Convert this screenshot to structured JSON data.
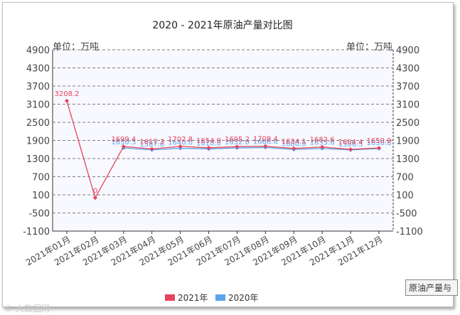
{
  "chart_data": {
    "type": "line",
    "title": "2020 - 2021年原油产量对比图",
    "ylabel_left": "单位：万吨",
    "ylabel_right": "单位：万吨",
    "yticks": [
      4900,
      4300,
      3700,
      3100,
      2500,
      1900,
      1300,
      700,
      100,
      -500,
      -1100
    ],
    "ylim": [
      -1100,
      4900
    ],
    "categories": [
      "2021年01月",
      "2021年02月",
      "2021年03月",
      "2021年04月",
      "2021年05月",
      "2021年06月",
      "2021年07月",
      "2021年08月",
      "2021年09月",
      "2021年10月",
      "2021年11月",
      "2021年12月"
    ],
    "series": [
      {
        "name": "2021年",
        "color": "#e8435a",
        "values": [
          3208.2,
          0,
          1699.4,
          1617.3,
          1702.8,
          1654.9,
          1695.2,
          1708.4,
          1634.1,
          1682.6,
          1604.4,
          1650.9
        ],
        "labels": [
          "3208.2",
          "0",
          "1699.4",
          "1617.3",
          "1702.8",
          "1654.9",
          "1695.2",
          "1708.4",
          "1634.1",
          "1682.6",
          "1604.4",
          "1650.9"
        ]
      },
      {
        "name": "2020年",
        "color": "#5ba4e8",
        "values": [
          null,
          null,
          1650.5,
          1587.6,
          1640.0,
          1618.8,
          1652.0,
          1666.6,
          1600.0,
          1635.6,
          1586.5,
          1630.8
        ],
        "labels": [
          "",
          "",
          "1650.5",
          "1587.6",
          "1640.0",
          "1618.8",
          "1652.0",
          "1666.6",
          "1600.0",
          "1635.6",
          "1586.5",
          "1630.8"
        ]
      }
    ],
    "legend": "bottom-center",
    "grid": true
  },
  "tooltip": "原油产量与",
  "watermark": "© 大数据网"
}
